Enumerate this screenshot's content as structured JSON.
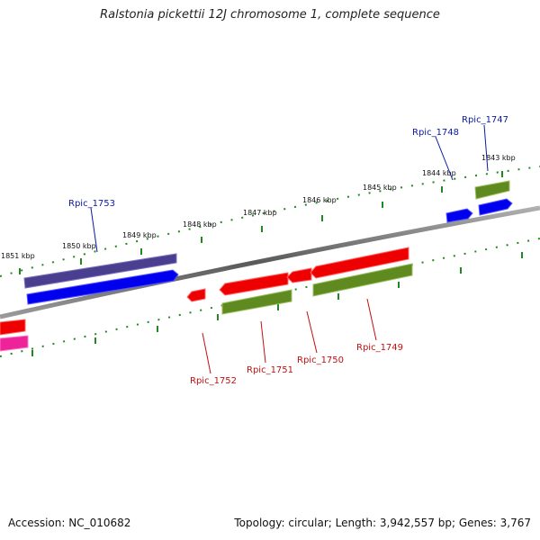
{
  "title": "Ralstonia pickettii 12J chromosome 1, complete sequence",
  "footer": {
    "accession": "Accession: NC_010682",
    "topology": "Topology: circular; Length: 3,942,557 bp; Genes: 3,767"
  },
  "colors": {
    "backbone": "#808080",
    "tick_dots": "#228822",
    "label_forward": "#0a1aa0",
    "label_reverse": "#c01010"
  },
  "kbp_labels": [
    "1851 kbp",
    "1850 kbp",
    "1849 kbp",
    "1848 kbp",
    "1847 kbp",
    "1846 kbp",
    "1845 kbp",
    "1844 kbp",
    "1843 kbp"
  ],
  "gene_labels": [
    {
      "text": "Rpic_1753",
      "strand": "forward"
    },
    {
      "text": "Rpic_1748",
      "strand": "forward"
    },
    {
      "text": "Rpic_1747",
      "strand": "forward"
    },
    {
      "text": "Rpic_1752",
      "strand": "reverse"
    },
    {
      "text": "Rpic_1751",
      "strand": "reverse"
    },
    {
      "text": "Rpic_1750",
      "strand": "reverse"
    },
    {
      "text": "Rpic_1749",
      "strand": "reverse"
    }
  ],
  "features": [
    {
      "id": "f-purple",
      "color": "#4a3f8f",
      "strand": "forward",
      "track": "outer"
    },
    {
      "id": "f-blue-1753",
      "color": "#0000ee",
      "strand": "forward",
      "track": "inner"
    },
    {
      "id": "f-blue-1748",
      "color": "#0000ee",
      "strand": "forward",
      "track": "inner"
    },
    {
      "id": "f-blue-1747",
      "color": "#0000ee",
      "strand": "forward",
      "track": "inner"
    },
    {
      "id": "f-green-1747",
      "color": "#5f8a1f",
      "strand": "forward",
      "track": "outer"
    },
    {
      "id": "f-red-1752",
      "color": "#ee0000",
      "strand": "reverse",
      "track": "inner"
    },
    {
      "id": "f-red-1751",
      "color": "#ee0000",
      "strand": "reverse",
      "track": "inner"
    },
    {
      "id": "f-red-1750",
      "color": "#ee0000",
      "strand": "reverse",
      "track": "inner"
    },
    {
      "id": "f-red-1749",
      "color": "#ee0000",
      "strand": "reverse",
      "track": "inner"
    },
    {
      "id": "f-green-1751",
      "color": "#5f8a1f",
      "strand": "reverse",
      "track": "outer"
    },
    {
      "id": "f-green-1749",
      "color": "#5f8a1f",
      "strand": "reverse",
      "track": "outer"
    },
    {
      "id": "f-red-edge",
      "color": "#ee0000",
      "strand": "reverse",
      "track": "inner"
    },
    {
      "id": "f-pink-edge",
      "color": "#ee2299",
      "strand": "reverse",
      "track": "outer"
    }
  ]
}
